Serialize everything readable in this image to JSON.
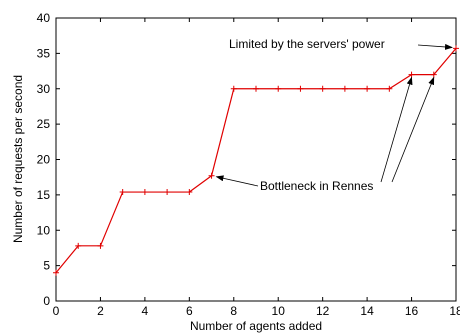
{
  "chart_data": {
    "type": "line",
    "xlabel": "Number of agents added",
    "ylabel": "Number of requests per second",
    "xlim": [
      0,
      18
    ],
    "ylim": [
      0,
      40
    ],
    "xticks": [
      0,
      2,
      4,
      6,
      8,
      10,
      12,
      14,
      16,
      18
    ],
    "yticks": [
      0,
      5,
      10,
      15,
      20,
      25,
      30,
      35,
      40
    ],
    "grid": false,
    "legend": "none",
    "series": [
      {
        "color": "#e00000",
        "marker": "plus",
        "x": [
          0,
          1,
          2,
          3,
          4,
          5,
          6,
          7,
          8,
          9,
          10,
          11,
          12,
          13,
          14,
          15,
          16,
          17,
          18
        ],
        "y": [
          4,
          7.8,
          7.8,
          15.4,
          15.4,
          15.4,
          15.4,
          17.7,
          30,
          30,
          30,
          30,
          30,
          30,
          30,
          30,
          32,
          32,
          35.7
        ]
      }
    ],
    "annotations": [
      {
        "text": "Limited by the servers' power",
        "targets": [
          {
            "x": 18,
            "y": 35.7
          }
        ]
      },
      {
        "text": "Bottleneck in Rennes",
        "targets": [
          {
            "x": 7,
            "y": 17.7
          },
          {
            "x": 16,
            "y": 32
          },
          {
            "x": 17,
            "y": 32
          }
        ]
      }
    ]
  }
}
